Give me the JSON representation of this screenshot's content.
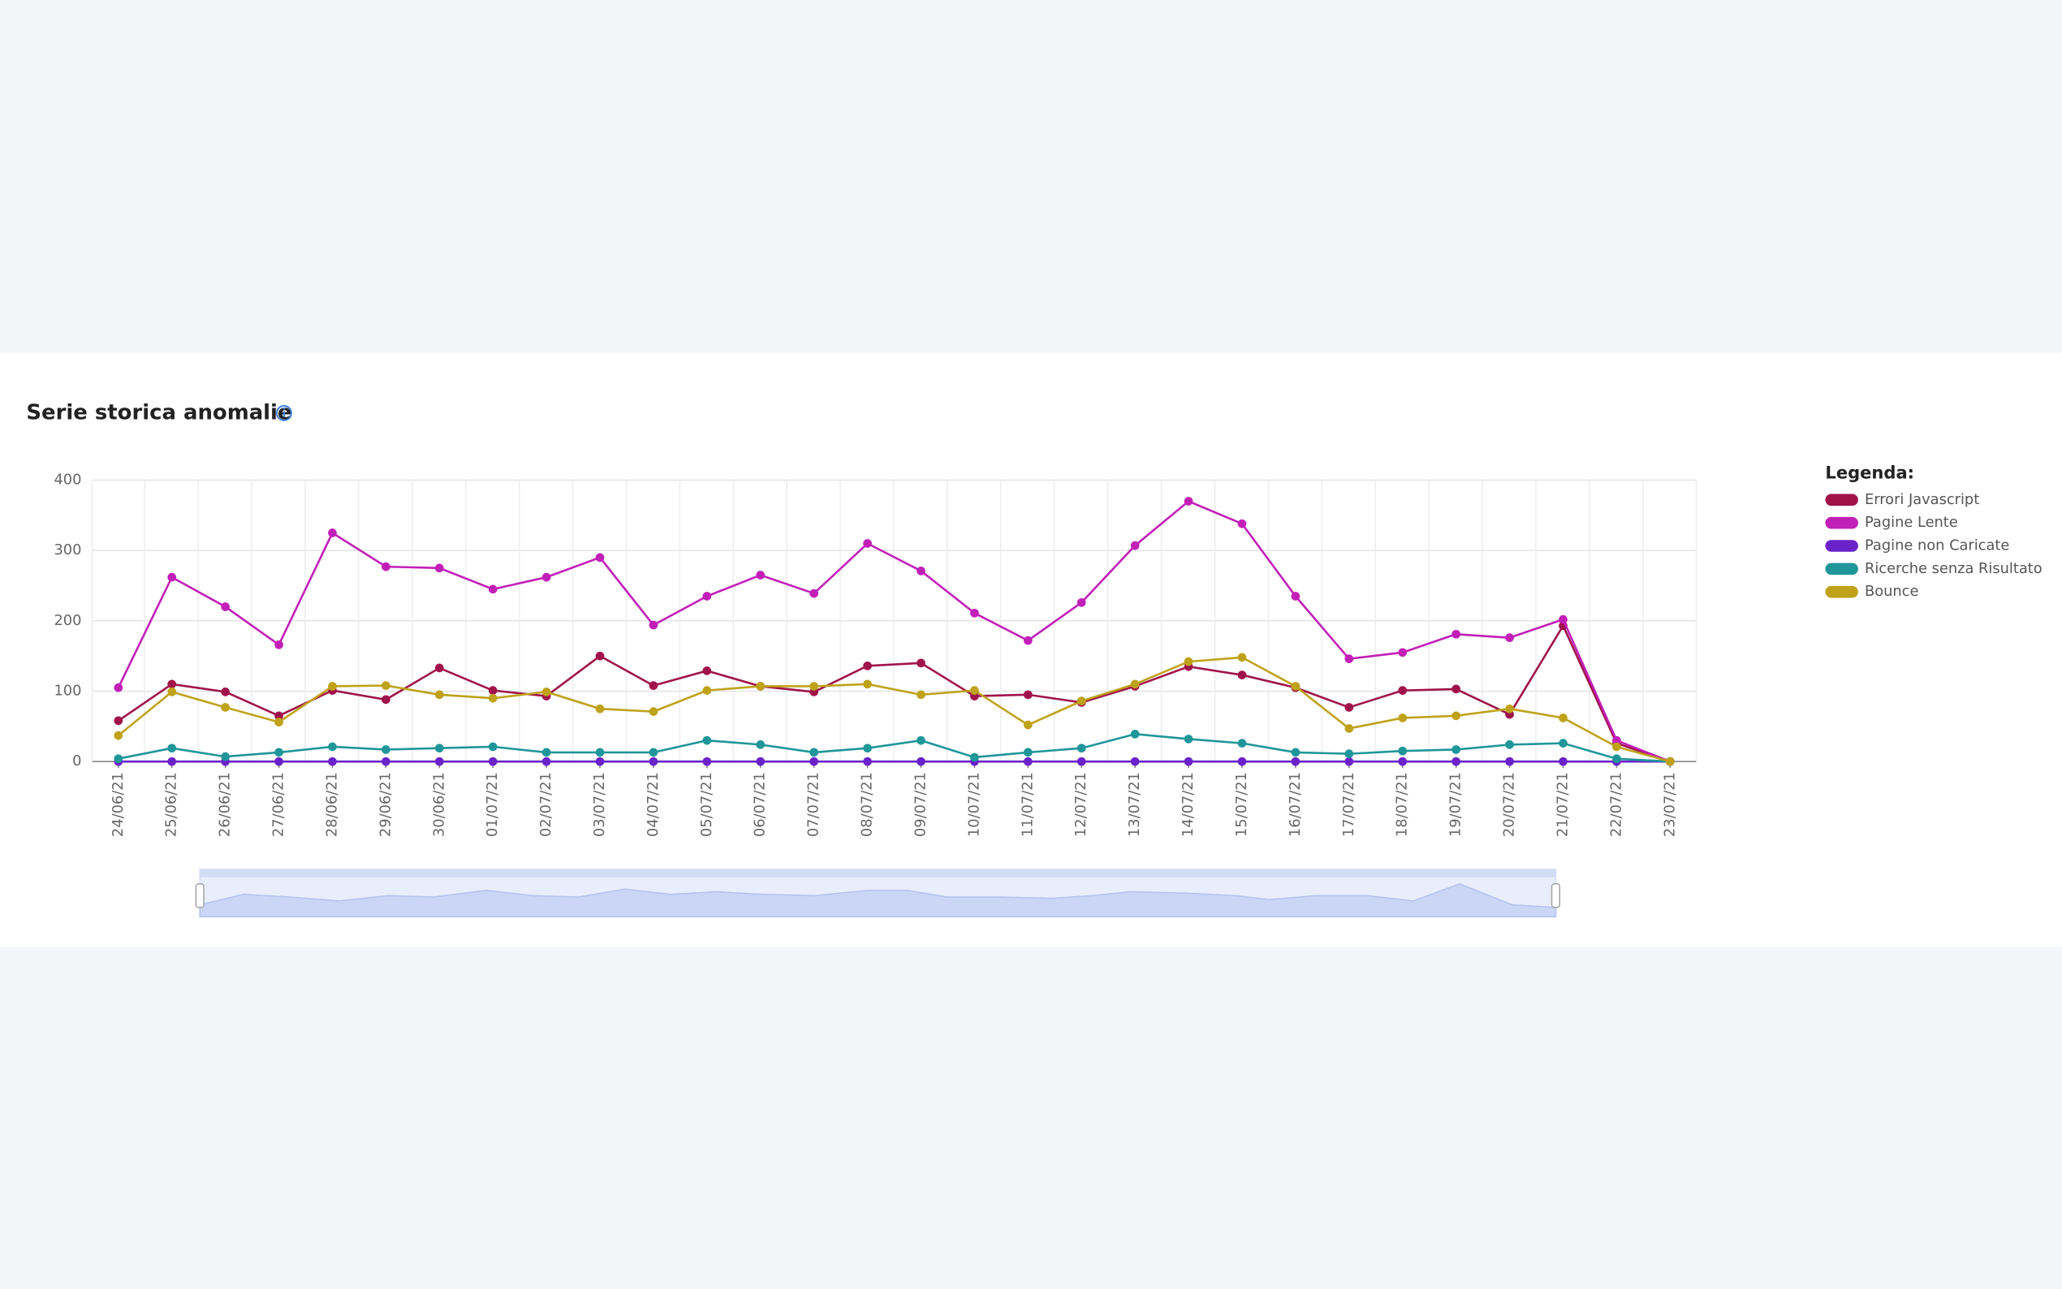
{
  "chart_data": {
    "type": "line",
    "title": "Serie storica anomalie",
    "legend_title": "Legenda:",
    "legend_position": "right",
    "grid": true,
    "categories": [
      "24/06/21",
      "25/06/21",
      "26/06/21",
      "27/06/21",
      "28/06/21",
      "29/06/21",
      "30/06/21",
      "01/07/21",
      "02/07/21",
      "03/07/21",
      "04/07/21",
      "05/07/21",
      "06/07/21",
      "07/07/21",
      "08/07/21",
      "09/07/21",
      "10/07/21",
      "11/07/21",
      "12/07/21",
      "13/07/21",
      "14/07/21",
      "15/07/21",
      "16/07/21",
      "17/07/21",
      "18/07/21",
      "19/07/21",
      "20/07/21",
      "21/07/21",
      "22/07/21",
      "23/07/21"
    ],
    "ylim": [
      0,
      400
    ],
    "yticks": [
      0,
      100,
      200,
      300,
      400
    ],
    "series": [
      {
        "name": "Errori Javascript",
        "color": "#a0134a",
        "values": [
          58,
          110,
          99,
          65,
          101,
          88,
          133,
          101,
          93,
          150,
          108,
          129,
          107,
          99,
          136,
          140,
          93,
          95,
          84,
          107,
          135,
          123,
          105,
          77,
          101,
          103,
          67,
          193,
          26,
          0
        ]
      },
      {
        "name": "Pagine Lente",
        "color": "#c21fb8",
        "values": [
          105,
          262,
          220,
          166,
          325,
          277,
          275,
          245,
          262,
          290,
          194,
          235,
          265,
          239,
          310,
          271,
          211,
          172,
          226,
          307,
          370,
          338,
          235,
          146,
          155,
          181,
          176,
          202,
          30,
          0
        ]
      },
      {
        "name": "Pagine non Caricate",
        "color": "#6a22c9",
        "values": [
          0,
          0,
          0,
          0,
          0,
          0,
          0,
          0,
          0,
          0,
          0,
          0,
          0,
          0,
          0,
          0,
          0,
          0,
          0,
          0,
          0,
          0,
          0,
          0,
          0,
          0,
          0,
          0,
          0,
          0
        ]
      },
      {
        "name": "Ricerche senza Risultato",
        "color": "#1f9699",
        "values": [
          4,
          19,
          7,
          13,
          21,
          17,
          19,
          21,
          13,
          13,
          13,
          30,
          24,
          13,
          19,
          30,
          6,
          13,
          19,
          39,
          32,
          26,
          13,
          11,
          15,
          17,
          24,
          26,
          4,
          0
        ]
      },
      {
        "name": "Bounce",
        "color": "#bfa21a",
        "values": [
          37,
          99,
          77,
          56,
          107,
          108,
          95,
          90,
          99,
          75,
          71,
          101,
          107,
          107,
          110,
          95,
          101,
          52,
          86,
          110,
          142,
          148,
          107,
          47,
          62,
          65,
          75,
          62,
          21,
          0
        ]
      }
    ]
  }
}
